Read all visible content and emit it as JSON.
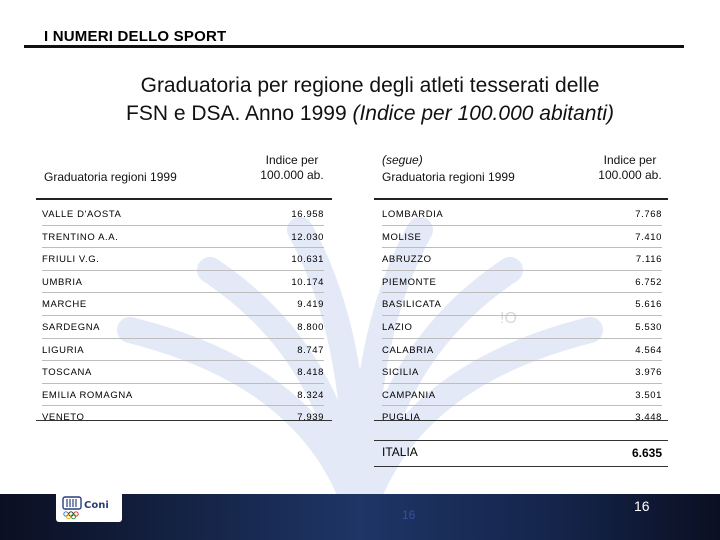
{
  "header": {
    "section_title": "I NUMERI DELLO SPORT",
    "title_line1": "Graduatoria per regione degli atleti tesserati delle",
    "title_line2_plain": "FSN e DSA. Anno 1999 ",
    "title_line2_italic": "(Indice per 100.000 abitanti)"
  },
  "left_table": {
    "col1_header": "Graduatoria regioni 1999",
    "col2_header_line1": "Indice per",
    "col2_header_line2": "100.000 ab.",
    "rows": [
      {
        "region": "VALLE D'AOSTA",
        "value": "16.958"
      },
      {
        "region": "TRENTINO A.A.",
        "value": "12.030"
      },
      {
        "region": "FRIULI V.G.",
        "value": "10.631"
      },
      {
        "region": "UMBRIA",
        "value": "10.174"
      },
      {
        "region": "MARCHE",
        "value": "9.419"
      },
      {
        "region": "SARDEGNA",
        "value": "8.800"
      },
      {
        "region": "LIGURIA",
        "value": "8.747"
      },
      {
        "region": "TOSCANA",
        "value": "8.418"
      },
      {
        "region": "EMILIA ROMAGNA",
        "value": "8.324"
      },
      {
        "region": "VENETO",
        "value": "7.939"
      }
    ]
  },
  "right_table": {
    "col1_header_line1": "(segue)",
    "col1_header_line2": "Graduatoria regioni 1999",
    "col2_header_line1": "Indice per",
    "col2_header_line2": "100.000 ab.",
    "rows": [
      {
        "region": "LOMBARDIA",
        "value": "7.768"
      },
      {
        "region": "MOLISE",
        "value": "7.410"
      },
      {
        "region": "ABRUZZO",
        "value": "7.116"
      },
      {
        "region": "PIEMONTE",
        "value": "6.752"
      },
      {
        "region": "BASILICATA",
        "value": "5.616"
      },
      {
        "region": "LAZIO",
        "value": "5.530"
      },
      {
        "region": "CALABRIA",
        "value": "4.564"
      },
      {
        "region": "SICILIA",
        "value": "3.976"
      },
      {
        "region": "CAMPANIA",
        "value": "3.501"
      },
      {
        "region": "PUGLIA",
        "value": "3.448"
      }
    ],
    "total_label": "ITALIA",
    "total_value": "6.635"
  },
  "stray_text": "!O",
  "footer": {
    "logo_text": "Coni",
    "logo_icon": "coni-olympic-rings-logo",
    "page_ghost": "16",
    "page_number": "16"
  },
  "colors": {
    "footer_dark": "#0b0f22",
    "footer_blue": "#1e3566",
    "watermark_blue": "#dfe6f5"
  }
}
